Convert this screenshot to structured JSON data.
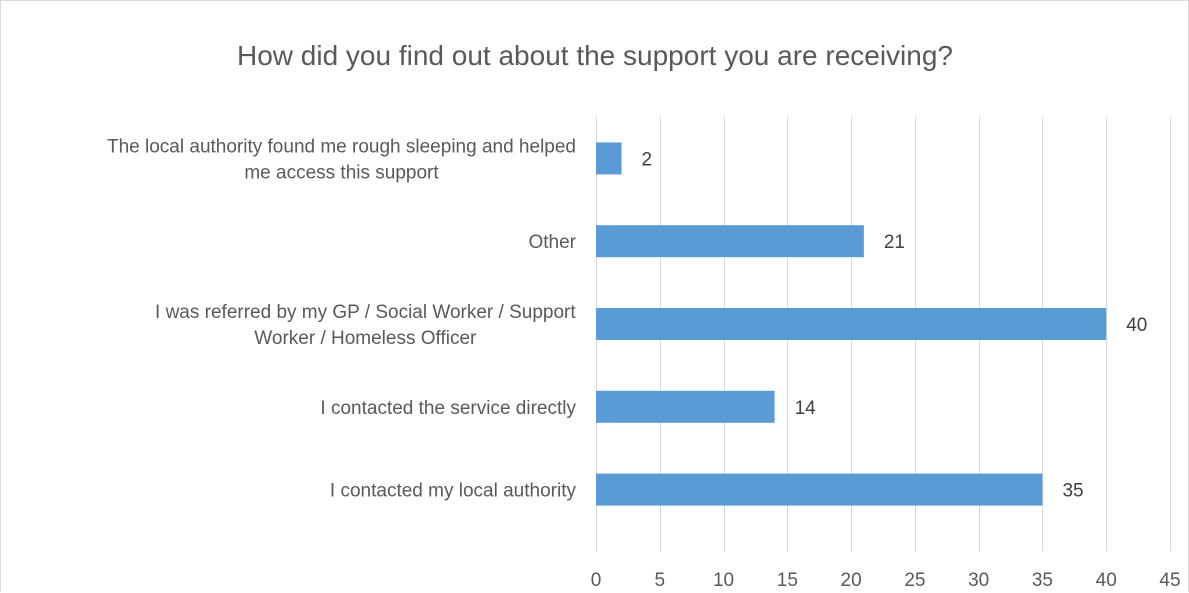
{
  "chart_data": {
    "type": "bar",
    "orientation": "horizontal",
    "title": "How did you find out about the support you are receiving?",
    "categories": [
      [
        "The local authority found me rough sleeping and helped",
        "me access this support"
      ],
      [
        "Other"
      ],
      [
        "I was referred by my GP / Social Worker / Support",
        "Worker / Homeless Officer"
      ],
      [
        "I contacted the service directly"
      ],
      [
        "I contacted my local authority"
      ]
    ],
    "values": [
      2,
      21,
      40,
      14,
      35
    ],
    "xlim": [
      0,
      45
    ],
    "xticks": [
      0,
      5,
      10,
      15,
      20,
      25,
      30,
      35,
      40,
      45
    ],
    "grid": true,
    "legend": "none",
    "colors": {
      "bar": "#5b9bd5",
      "text": "#595959",
      "grid": "#d9d9d9"
    }
  }
}
